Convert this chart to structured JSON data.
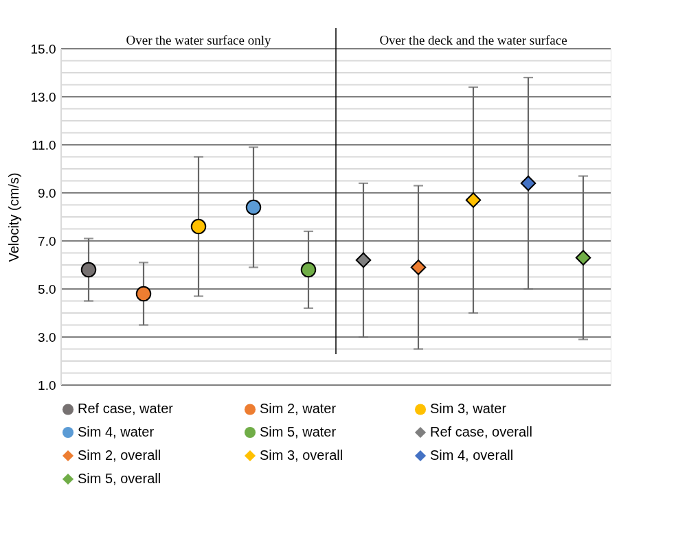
{
  "chart_data": {
    "type": "scatter",
    "ylabel": "Velocity (cm/s)",
    "categories": [
      null,
      null,
      null,
      null,
      null,
      null,
      null,
      null,
      null,
      null
    ],
    "annotations": [
      "Over the water surface only",
      "Over the deck and the water surface"
    ],
    "ylim": [
      1,
      15
    ],
    "yticks": [
      {
        "value": 1,
        "label": "1.0"
      },
      {
        "value": 1.5,
        "label": null
      },
      {
        "value": 2,
        "label": null
      },
      {
        "value": 2.5,
        "label": null
      },
      {
        "value": 3,
        "label": "3.0"
      },
      {
        "value": 3.5,
        "label": null
      },
      {
        "value": 4,
        "label": null
      },
      {
        "value": 4.5,
        "label": null
      },
      {
        "value": 5,
        "label": "5.0"
      },
      {
        "value": 5.5,
        "label": null
      },
      {
        "value": 6,
        "label": null
      },
      {
        "value": 6.5,
        "label": null
      },
      {
        "value": 7,
        "label": "7.0"
      },
      {
        "value": 7.5,
        "label": null
      },
      {
        "value": 8,
        "label": null
      },
      {
        "value": 8.5,
        "label": null
      },
      {
        "value": 9,
        "label": "9.0"
      },
      {
        "value": 9.5,
        "label": null
      },
      {
        "value": 10,
        "label": null
      },
      {
        "value": 10.5,
        "label": null
      },
      {
        "value": 11,
        "label": "11.0"
      },
      {
        "value": 11.5,
        "label": null
      },
      {
        "value": 12,
        "label": null
      },
      {
        "value": 12.5,
        "label": null
      },
      {
        "value": 13,
        "label": "13.0"
      },
      {
        "value": 13.5,
        "label": null
      },
      {
        "value": 14,
        "label": null
      },
      {
        "value": 14.5,
        "label": null
      },
      {
        "value": 15,
        "label": "15.0"
      }
    ],
    "grid": "y",
    "legend": "bottom",
    "tick_labels": "y",
    "series": [
      {
        "name": "Ref case, water",
        "color": "#767171",
        "marker": "circle",
        "values": [
          5.8,
          null,
          null,
          null,
          null,
          null,
          null,
          null,
          null,
          null
        ],
        "errors": [
          [
            4.5,
            7.1
          ],
          null,
          null,
          null,
          null,
          null,
          null,
          null,
          null,
          null
        ]
      },
      {
        "name": "Sim 2, water",
        "color": "#ed7d31",
        "marker": "circle",
        "values": [
          null,
          4.8,
          null,
          null,
          null,
          null,
          null,
          null,
          null,
          null
        ],
        "errors": [
          null,
          [
            3.5,
            6.1
          ],
          null,
          null,
          null,
          null,
          null,
          null,
          null,
          null
        ]
      },
      {
        "name": "Sim 3, water",
        "color": "#ffc000",
        "marker": "circle",
        "values": [
          null,
          null,
          7.6,
          null,
          null,
          null,
          null,
          null,
          null,
          null
        ],
        "errors": [
          null,
          null,
          [
            4.7,
            10.5
          ],
          null,
          null,
          null,
          null,
          null,
          null,
          null
        ]
      },
      {
        "name": "Sim 4, water",
        "color": "#5b9bd5",
        "marker": "circle",
        "values": [
          null,
          null,
          null,
          8.4,
          null,
          null,
          null,
          null,
          null,
          null
        ],
        "errors": [
          null,
          null,
          null,
          [
            5.9,
            10.9
          ],
          null,
          null,
          null,
          null,
          null,
          null
        ]
      },
      {
        "name": "Sim 5, water",
        "color": "#70ad47",
        "marker": "circle",
        "values": [
          null,
          null,
          null,
          null,
          5.8,
          null,
          null,
          null,
          null,
          null
        ],
        "errors": [
          null,
          null,
          null,
          null,
          [
            4.2,
            7.4
          ],
          null,
          null,
          null,
          null,
          null
        ]
      },
      {
        "name": "Ref case, overall",
        "color": "#7f7f7f",
        "marker": "diamond",
        "values": [
          null,
          null,
          null,
          null,
          null,
          6.2,
          null,
          null,
          null,
          null
        ],
        "errors": [
          null,
          null,
          null,
          null,
          null,
          [
            3.0,
            9.4
          ],
          null,
          null,
          null,
          null
        ]
      },
      {
        "name": "Sim 2, overall",
        "color": "#ed7d31",
        "marker": "diamond",
        "values": [
          null,
          null,
          null,
          null,
          null,
          null,
          5.9,
          null,
          null,
          null
        ],
        "errors": [
          null,
          null,
          null,
          null,
          null,
          null,
          [
            2.5,
            9.3
          ],
          null,
          null,
          null
        ]
      },
      {
        "name": "Sim 3, overall",
        "color": "#ffc000",
        "marker": "diamond",
        "values": [
          null,
          null,
          null,
          null,
          null,
          null,
          null,
          8.7,
          null,
          null
        ],
        "errors": [
          null,
          null,
          null,
          null,
          null,
          null,
          null,
          [
            4.0,
            13.4
          ],
          null,
          null
        ]
      },
      {
        "name": "Sim 4, overall",
        "color": "#4472c4",
        "marker": "diamond",
        "values": [
          null,
          null,
          null,
          null,
          null,
          null,
          null,
          null,
          9.4,
          null
        ],
        "errors": [
          null,
          null,
          null,
          null,
          null,
          null,
          null,
          null,
          [
            5.0,
            13.8
          ],
          null
        ]
      },
      {
        "name": "Sim 5, overall",
        "color": "#70ad47",
        "marker": "diamond",
        "values": [
          null,
          null,
          null,
          null,
          null,
          null,
          null,
          null,
          null,
          6.3
        ],
        "errors": [
          null,
          null,
          null,
          null,
          null,
          null,
          null,
          null,
          null,
          [
            2.9,
            9.7
          ]
        ]
      }
    ]
  }
}
